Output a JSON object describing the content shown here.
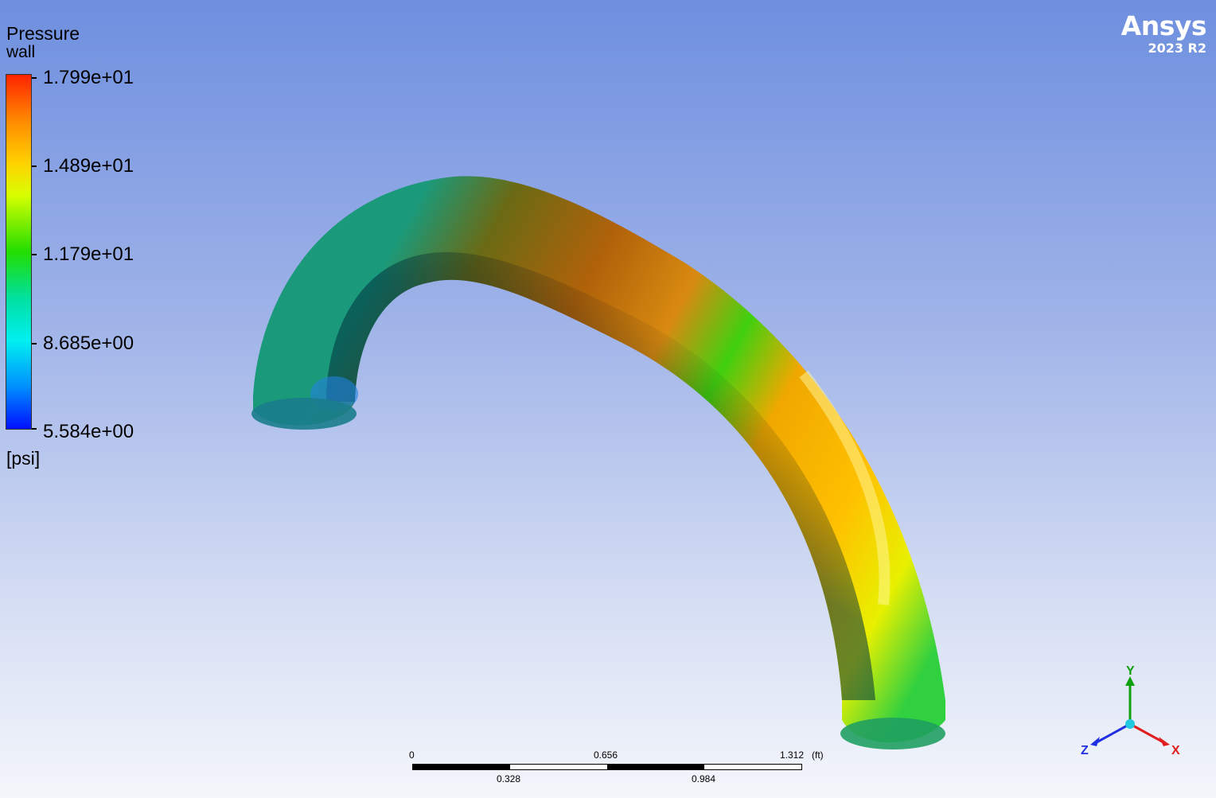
{
  "legend": {
    "title": "Pressure",
    "subtitle": "wall",
    "ticks": [
      "1.799e+01",
      "1.489e+01",
      "1.179e+01",
      "8.685e+00",
      "5.584e+00"
    ],
    "unit": "[psi]"
  },
  "branding": {
    "name": "Ansys",
    "version": "2023 R2"
  },
  "scale_bar": {
    "top_labels": [
      "0",
      "0.656",
      "1.312"
    ],
    "bottom_labels": [
      "0.328",
      "0.984"
    ],
    "unit": "(ft)"
  },
  "axes": {
    "x": "X",
    "y": "Y",
    "z": "Z",
    "colors": {
      "x": "#e02020",
      "y": "#10a010",
      "z": "#2030e0"
    }
  },
  "colors": {
    "background_top": "#6e8fdf",
    "background_bottom": "#f4f6fb",
    "colormap_max": "#ff2200",
    "colormap_min": "#0010ff"
  }
}
